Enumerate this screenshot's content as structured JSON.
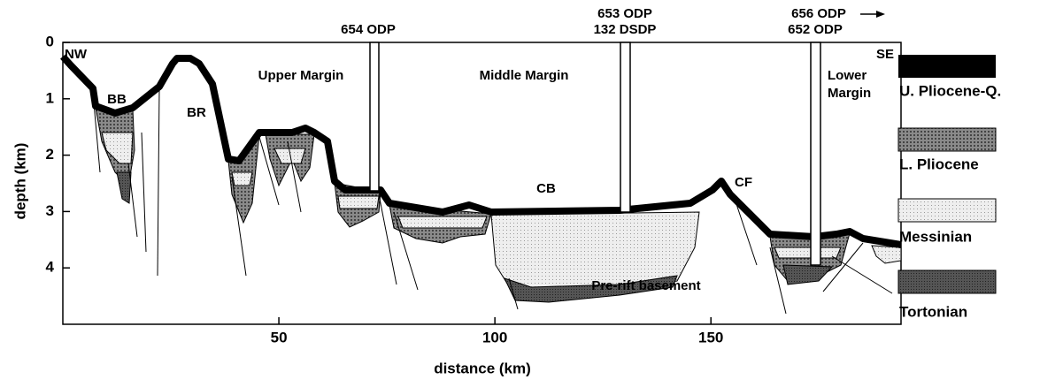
{
  "axes": {
    "x_label": "distance (km)",
    "y_label": "depth (km)",
    "xlim": [
      0,
      194
    ],
    "ylim": [
      0,
      5
    ],
    "xticks": [
      50,
      100,
      150
    ],
    "yticks": [
      0,
      1,
      2,
      3,
      4
    ]
  },
  "labels": {
    "nw": "NW",
    "se": "SE",
    "bb": "BB",
    "br": "BR",
    "cb": "CB",
    "cf": "CF",
    "upper_margin": "Upper Margin",
    "middle_margin": "Middle Margin",
    "lower_margin": [
      "Lower",
      "Margin"
    ],
    "basement": "Pre-rift basement"
  },
  "sites": [
    "654 ODP",
    "653 ODP",
    "132 DSDP",
    "656 ODP",
    "652 ODP"
  ],
  "legend": [
    "U. Pliocene-Q.",
    "L. Pliocene",
    "Messinian",
    "Tortonian"
  ]
}
